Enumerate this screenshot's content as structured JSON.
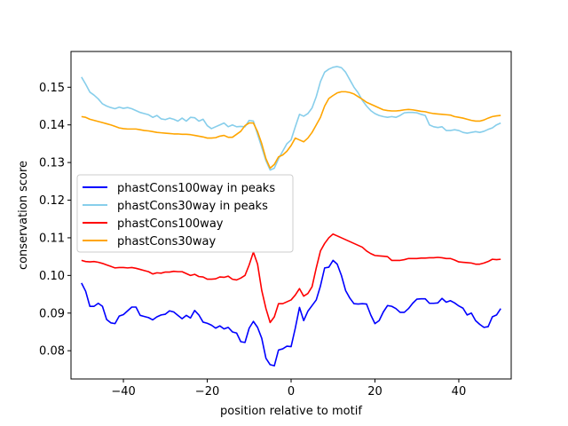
{
  "chart_data": {
    "type": "line",
    "xlabel": "position relative to motif",
    "ylabel": "conservation score",
    "xlim": [
      -52.5,
      52.5
    ],
    "ylim": [
      0.0725,
      0.1595
    ],
    "xticks": [
      -40,
      -20,
      0,
      20,
      40
    ],
    "xtick_labels": [
      "−40",
      "−20",
      "0",
      "20",
      "40"
    ],
    "yticks": [
      0.08,
      0.09,
      0.1,
      0.11,
      0.12,
      0.13,
      0.14,
      0.15
    ],
    "ytick_labels": [
      "0.08",
      "0.09",
      "0.10",
      "0.11",
      "0.12",
      "0.13",
      "0.14",
      "0.15"
    ],
    "grid": false,
    "legend_position": "center-left",
    "x": [
      -50,
      -49,
      -48,
      -47,
      -46,
      -45,
      -44,
      -43,
      -42,
      -41,
      -40,
      -39,
      -38,
      -37,
      -36,
      -35,
      -34,
      -33,
      -32,
      -31,
      -30,
      -29,
      -28,
      -27,
      -26,
      -25,
      -24,
      -23,
      -22,
      -21,
      -20,
      -19,
      -18,
      -17,
      -16,
      -15,
      -14,
      -13,
      -12,
      -11,
      -10,
      -9,
      -8,
      -7,
      -6,
      -5,
      -4,
      -3,
      -2,
      -1,
      0,
      1,
      2,
      3,
      4,
      5,
      6,
      7,
      8,
      9,
      10,
      11,
      12,
      13,
      14,
      15,
      16,
      17,
      18,
      19,
      20,
      21,
      22,
      23,
      24,
      25,
      26,
      27,
      28,
      29,
      30,
      31,
      32,
      33,
      34,
      35,
      36,
      37,
      38,
      39,
      40,
      41,
      42,
      43,
      44,
      45,
      46,
      47,
      48,
      49,
      50
    ],
    "series": [
      {
        "name": "phastCons100way in peaks",
        "color": "#0000ff",
        "values": [
          0.098,
          0.0958,
          0.0918,
          0.0918,
          0.0926,
          0.0918,
          0.0883,
          0.0874,
          0.0872,
          0.0892,
          0.0896,
          0.0906,
          0.0916,
          0.0916,
          0.0894,
          0.0891,
          0.0888,
          0.0882,
          0.089,
          0.0895,
          0.0897,
          0.0906,
          0.0903,
          0.0894,
          0.0885,
          0.0894,
          0.0887,
          0.0907,
          0.0895,
          0.0876,
          0.0873,
          0.0868,
          0.086,
          0.0866,
          0.0858,
          0.0862,
          0.085,
          0.0847,
          0.0824,
          0.0822,
          0.086,
          0.0878,
          0.0862,
          0.0833,
          0.078,
          0.0763,
          0.076,
          0.0802,
          0.0805,
          0.0812,
          0.0811,
          0.086,
          0.0915,
          0.088,
          0.0905,
          0.092,
          0.0935,
          0.0972,
          0.102,
          0.1022,
          0.104,
          0.103,
          0.1,
          0.096,
          0.094,
          0.0925,
          0.0924,
          0.0925,
          0.0924,
          0.0895,
          0.0872,
          0.088,
          0.0903,
          0.092,
          0.0918,
          0.0912,
          0.0902,
          0.0902,
          0.0912,
          0.0926,
          0.0937,
          0.0938,
          0.0938,
          0.0926,
          0.0926,
          0.0927,
          0.0939,
          0.0929,
          0.0933,
          0.0927,
          0.0919,
          0.0913,
          0.0895,
          0.09,
          0.088,
          0.087,
          0.0862,
          0.0864,
          0.089,
          0.0895,
          0.0912
        ]
      },
      {
        "name": "phastCons30way in peaks",
        "color": "#87ceeb",
        "values": [
          0.1527,
          0.1508,
          0.1487,
          0.1479,
          0.1469,
          0.1456,
          0.145,
          0.1446,
          0.1443,
          0.1447,
          0.1444,
          0.1446,
          0.1443,
          0.1438,
          0.1433,
          0.143,
          0.1427,
          0.142,
          0.1425,
          0.1416,
          0.1414,
          0.1418,
          0.1415,
          0.141,
          0.1418,
          0.141,
          0.142,
          0.1419,
          0.141,
          0.1415,
          0.1398,
          0.139,
          0.1395,
          0.14,
          0.1405,
          0.1395,
          0.14,
          0.1395,
          0.1396,
          0.1395,
          0.1412,
          0.141,
          0.1375,
          0.134,
          0.1305,
          0.128,
          0.1285,
          0.131,
          0.133,
          0.135,
          0.136,
          0.1395,
          0.1428,
          0.1423,
          0.143,
          0.1445,
          0.1475,
          0.1515,
          0.154,
          0.1548,
          0.1553,
          0.1555,
          0.1552,
          0.154,
          0.152,
          0.15,
          0.1485,
          0.1465,
          0.145,
          0.1438,
          0.143,
          0.1425,
          0.1422,
          0.142,
          0.1422,
          0.142,
          0.1425,
          0.1432,
          0.1433,
          0.1433,
          0.1432,
          0.1428,
          0.1425,
          0.14,
          0.1395,
          0.1393,
          0.1395,
          0.1385,
          0.1385,
          0.1387,
          0.1385,
          0.138,
          0.1378,
          0.138,
          0.1382,
          0.138,
          0.1383,
          0.1388,
          0.1392,
          0.14,
          0.1405
        ]
      },
      {
        "name": "phastCons100way",
        "color": "#ff0000",
        "values": [
          0.104,
          0.1037,
          0.1036,
          0.1037,
          0.1035,
          0.1032,
          0.1028,
          0.1024,
          0.102,
          0.1021,
          0.1021,
          0.102,
          0.1021,
          0.1019,
          0.1016,
          0.1013,
          0.101,
          0.1004,
          0.1007,
          0.1006,
          0.1009,
          0.1009,
          0.1011,
          0.101,
          0.101,
          0.1005,
          0.1,
          0.1003,
          0.0997,
          0.0996,
          0.099,
          0.099,
          0.0991,
          0.0996,
          0.0995,
          0.0998,
          0.099,
          0.0988,
          0.0993,
          0.1,
          0.1028,
          0.1062,
          0.103,
          0.096,
          0.0912,
          0.0875,
          0.089,
          0.0925,
          0.0925,
          0.093,
          0.0935,
          0.0948,
          0.0965,
          0.0945,
          0.0952,
          0.097,
          0.102,
          0.1065,
          0.1085,
          0.11,
          0.111,
          0.1105,
          0.11,
          0.1095,
          0.109,
          0.1085,
          0.108,
          0.1075,
          0.1065,
          0.1058,
          0.1053,
          0.1052,
          0.1051,
          0.105,
          0.104,
          0.104,
          0.104,
          0.1042,
          0.1045,
          0.1045,
          0.1045,
          0.1046,
          0.1046,
          0.1047,
          0.1047,
          0.1048,
          0.1047,
          0.1045,
          0.1045,
          0.1041,
          0.1036,
          0.1035,
          0.1034,
          0.1033,
          0.103,
          0.103,
          0.1033,
          0.1037,
          0.1043,
          0.1042,
          0.1043
        ]
      },
      {
        "name": "phastCons30way",
        "color": "#ffa500",
        "values": [
          0.1422,
          0.142,
          0.1415,
          0.1412,
          0.1409,
          0.1406,
          0.1403,
          0.14,
          0.1396,
          0.1392,
          0.139,
          0.1389,
          0.1389,
          0.1389,
          0.1387,
          0.1385,
          0.1384,
          0.1382,
          0.138,
          0.1379,
          0.1378,
          0.1377,
          0.1376,
          0.1376,
          0.1375,
          0.1375,
          0.1374,
          0.1372,
          0.137,
          0.1368,
          0.1365,
          0.1365,
          0.1366,
          0.137,
          0.1372,
          0.1367,
          0.1367,
          0.1375,
          0.1383,
          0.1398,
          0.1405,
          0.1405,
          0.1382,
          0.135,
          0.131,
          0.1285,
          0.1295,
          0.1315,
          0.132,
          0.133,
          0.1345,
          0.1365,
          0.136,
          0.1355,
          0.1365,
          0.138,
          0.14,
          0.142,
          0.145,
          0.147,
          0.1478,
          0.1485,
          0.1488,
          0.1488,
          0.1486,
          0.1482,
          0.1475,
          0.1468,
          0.146,
          0.1455,
          0.145,
          0.1445,
          0.144,
          0.1438,
          0.1437,
          0.1437,
          0.1438,
          0.144,
          0.1441,
          0.144,
          0.1438,
          0.1436,
          0.1435,
          0.1432,
          0.143,
          0.1429,
          0.1428,
          0.1427,
          0.1426,
          0.1422,
          0.142,
          0.1418,
          0.1415,
          0.1412,
          0.141,
          0.141,
          0.1413,
          0.1418,
          0.1422,
          0.1424,
          0.1425
        ]
      }
    ]
  }
}
